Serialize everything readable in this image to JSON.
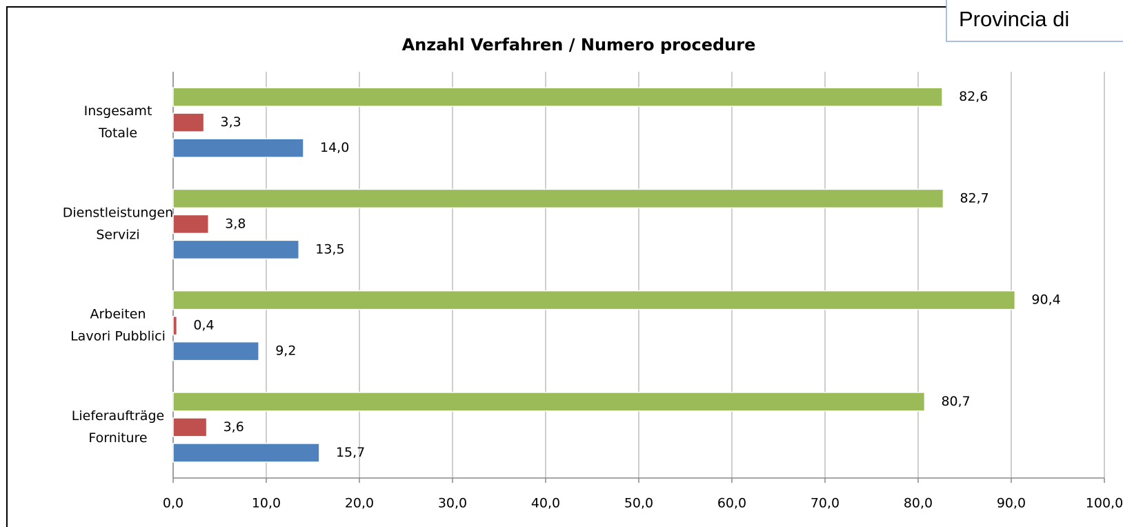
{
  "overlay_text": "Provincia di",
  "chart_data": {
    "type": "bar",
    "orientation": "horizontal",
    "title": "Anzahl Verfahren / Numero procedure",
    "categories": [
      [
        "Insgesamt",
        "Totale"
      ],
      [
        "Dienstleistungen",
        "Servizi"
      ],
      [
        "Arbeiten",
        "Lavori Pubblici"
      ],
      [
        "Lieferaufträge",
        "Forniture"
      ]
    ],
    "series": [
      {
        "color": "#9bbb59",
        "values": [
          82.6,
          82.7,
          90.4,
          80.7
        ],
        "value_labels": [
          "82,6",
          "82,7",
          "90,4",
          "80,7"
        ]
      },
      {
        "color": "#c0504d",
        "values": [
          3.3,
          3.8,
          0.4,
          3.6
        ],
        "value_labels": [
          "3,3",
          "3,8",
          "0,4",
          "3,6"
        ]
      },
      {
        "color": "#4f81bd",
        "values": [
          14.0,
          13.5,
          9.2,
          15.7
        ],
        "value_labels": [
          "14,0",
          "13,5",
          "9,2",
          "15,7"
        ]
      }
    ],
    "xlim": [
      0,
      100
    ],
    "xticks": [
      {
        "value": 0,
        "label": "0,0"
      },
      {
        "value": 10,
        "label": "10,0"
      },
      {
        "value": 20,
        "label": "20,0"
      },
      {
        "value": 30,
        "label": "30,0"
      },
      {
        "value": 40,
        "label": "40,0"
      },
      {
        "value": 50,
        "label": "50,0"
      },
      {
        "value": 60,
        "label": "60,0"
      },
      {
        "value": 70,
        "label": "70,0"
      },
      {
        "value": 80,
        "label": "80,0"
      },
      {
        "value": 90,
        "label": "90,0"
      },
      {
        "value": 100,
        "label": "100,0"
      }
    ],
    "grid": true
  }
}
